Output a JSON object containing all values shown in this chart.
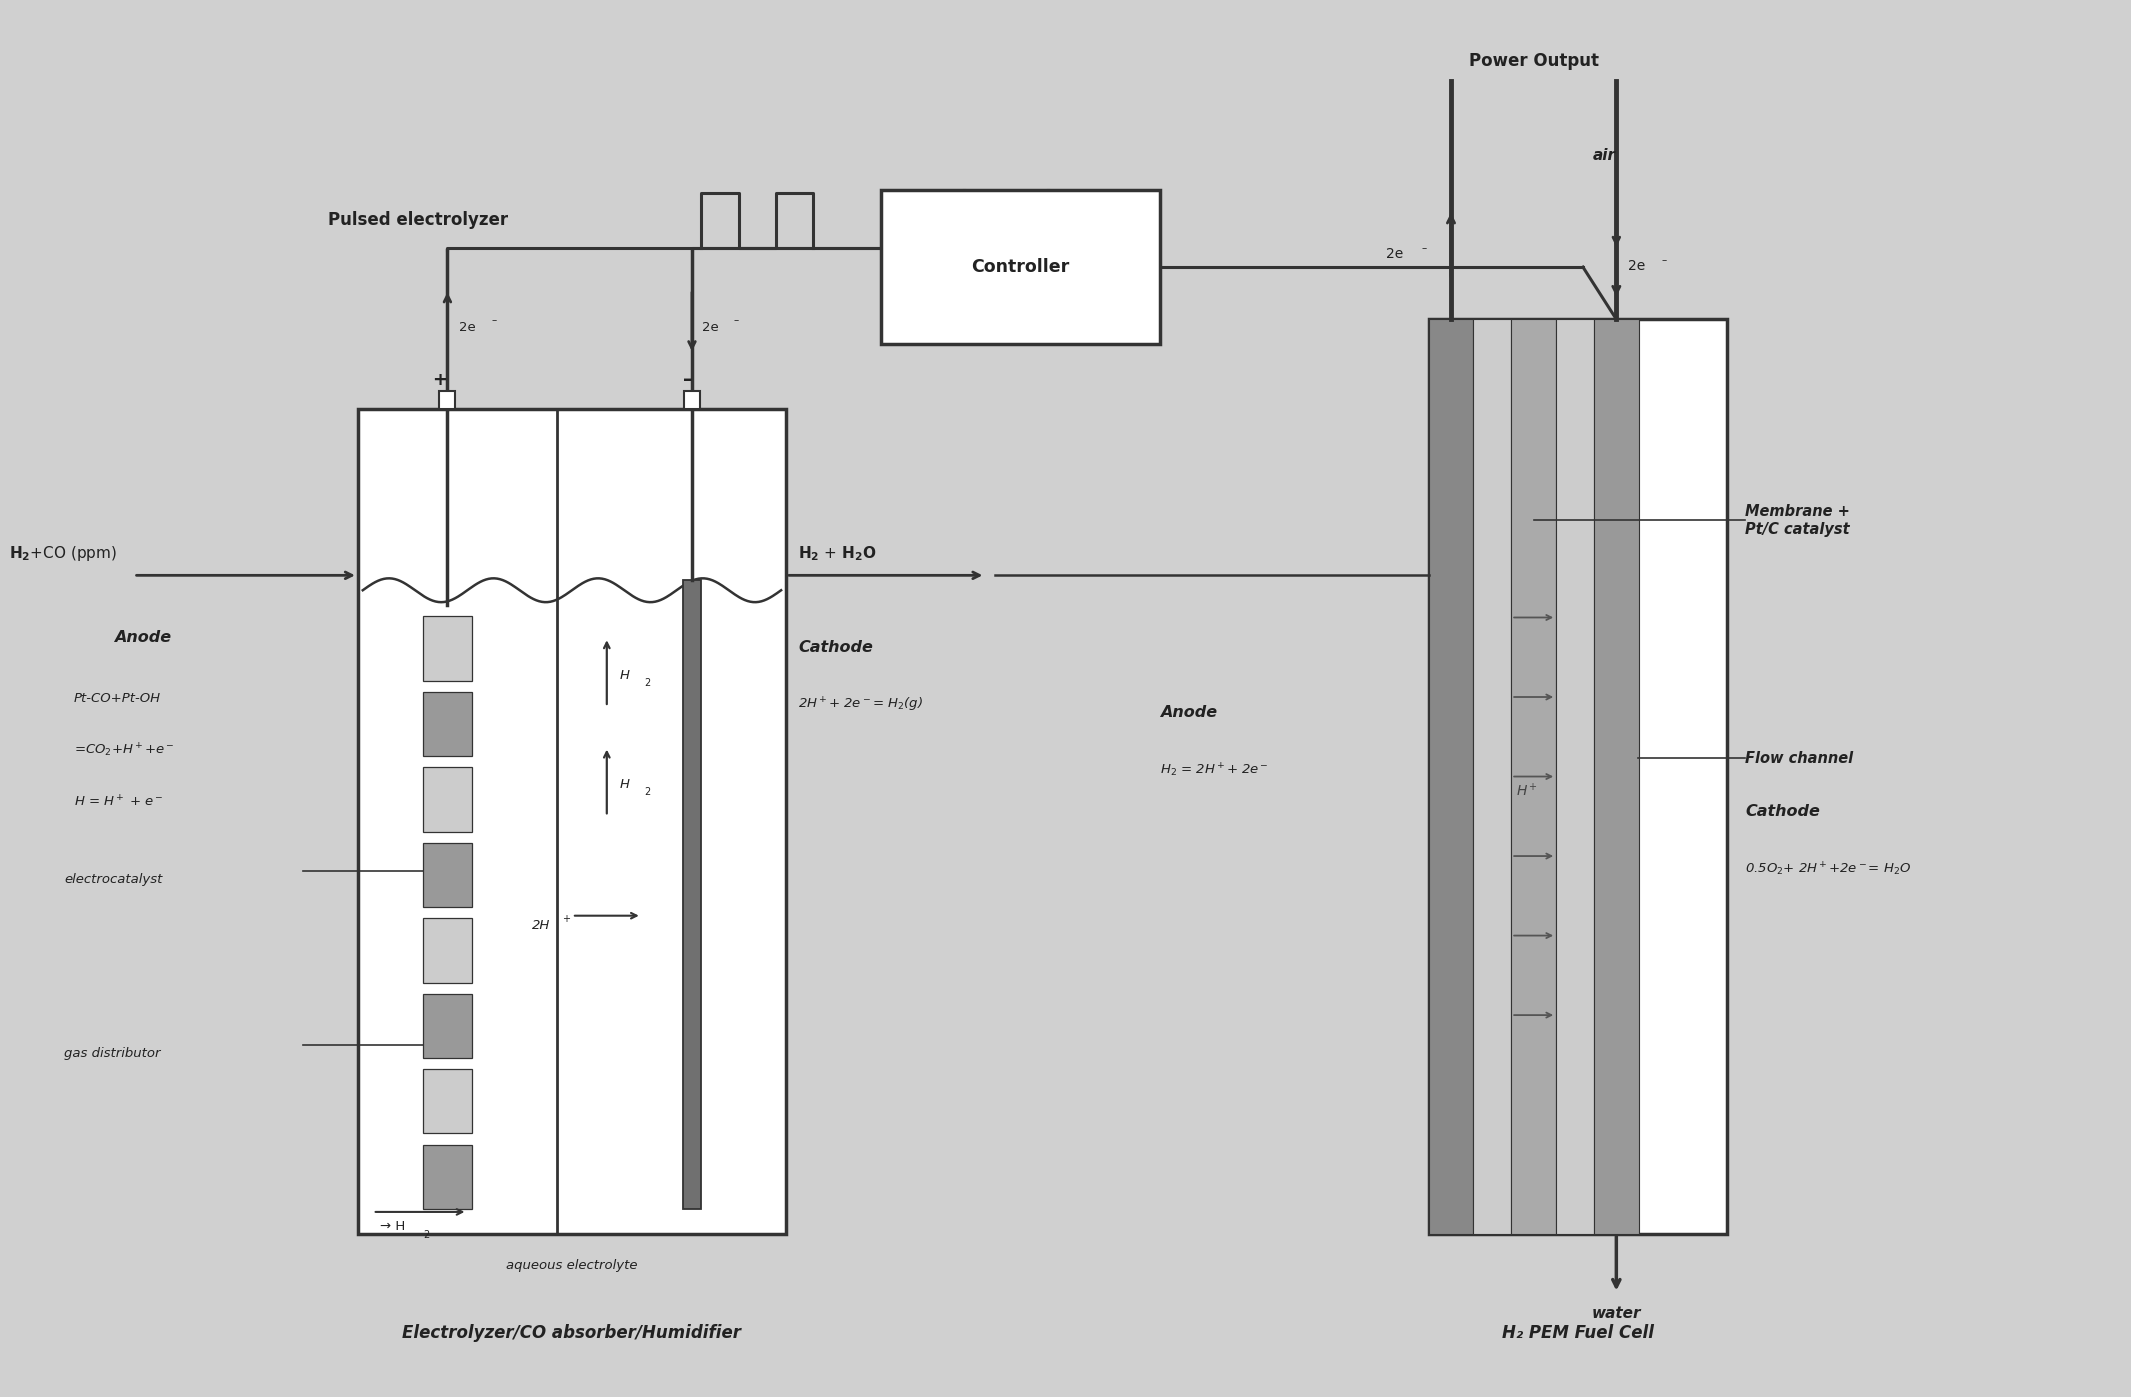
{
  "bg_color": "#d0d0d0",
  "text_color": "#222222",
  "line_color": "#333333",
  "white": "#ffffff",
  "light_gray": "#e8e8e8",
  "mid_gray": "#b0b0b0",
  "dark_gray": "#707070",
  "seg_dark": "#999999",
  "seg_light": "#cccccc",
  "electrolyzer_label": "Electrolyzer/CO absorber/Humidifier",
  "fuel_cell_label": "H₂ PEM Fuel Cell",
  "pulsed_label": "Pulsed electrolyzer",
  "controller_label": "Controller",
  "power_output_label": "Power Output",
  "h2co_label": "H₂+CO (ppm)",
  "h2h2o_label": "H₂ + H₂O",
  "aqueous_label": "aqueous electrolyte",
  "water_label": "water",
  "air_label": "air",
  "anode_left_title": "Anode",
  "anode_left_r1": "Pt-CO+Pt-OH",
  "anode_left_r2": "=CO₂+H⁺+e⁻",
  "anode_left_r3": "H = H⁺ + e⁻",
  "electrocatalyst": "electrocatalyst",
  "gas_distributor": "gas distributor",
  "cathode_left_title": "Cathode",
  "cathode_left_r1": "2H⁺+ 2e⁻= H₂(g)",
  "anode_right_title": "Anode",
  "anode_right_r1": "H₂ = 2H⁺+ 2e⁻",
  "cathode_right_title": "Cathode",
  "cathode_right_r1": "0.5O₂+ 2H⁺+2e⁻= H₂O",
  "membrane_label": "Membrane +\nPt/C catalyst",
  "flow_channel_label": "Flow channel"
}
